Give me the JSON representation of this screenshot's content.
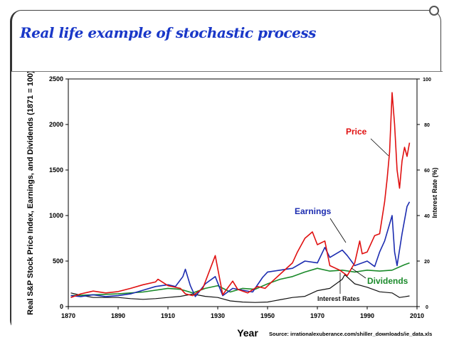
{
  "slide": {
    "title": "Real life example of stochastic process"
  },
  "chart_data": {
    "type": "line",
    "title": "",
    "xlabel": "Year",
    "ylabel_left": "Real S&P Stock Price Index, Earnings, and Dividends (1871 = 100)",
    "ylabel_right": "Interest Rate (%)",
    "xlim": [
      1870,
      2010
    ],
    "ylim_left": [
      0,
      2500
    ],
    "ylim_right": [
      0,
      100
    ],
    "x_ticks": [
      1870,
      1890,
      1910,
      1930,
      1950,
      1970,
      1990,
      2010
    ],
    "y_ticks_left": [
      0,
      500,
      1000,
      1500,
      2000,
      2500
    ],
    "y_ticks_right": [
      0,
      20,
      40,
      60,
      80,
      100
    ],
    "source": "Source: irrationalexuberance.com/shiller_downloads/ie_data.xls",
    "grid": false,
    "series": [
      {
        "name": "Price",
        "color": "#e01010",
        "axis": "left",
        "x": [
          1871,
          1875,
          1880,
          1885,
          1890,
          1895,
          1900,
          1905,
          1906,
          1910,
          1915,
          1917,
          1920,
          1924,
          1929,
          1932,
          1936,
          1938,
          1942,
          1946,
          1949,
          1952,
          1956,
          1960,
          1962,
          1965,
          1968,
          1970,
          1973,
          1975,
          1979,
          1982,
          1985,
          1987,
          1988,
          1990,
          1993,
          1995,
          1997,
          1998,
          1999,
          2000,
          2001,
          2002,
          2003,
          2004,
          2005,
          2006,
          2007
        ],
        "values": [
          100,
          140,
          170,
          150,
          165,
          200,
          240,
          270,
          300,
          230,
          200,
          140,
          120,
          200,
          560,
          130,
          280,
          190,
          150,
          220,
          200,
          280,
          380,
          480,
          600,
          750,
          820,
          680,
          720,
          450,
          400,
          340,
          480,
          720,
          580,
          600,
          780,
          800,
          1150,
          1400,
          1700,
          2350,
          2000,
          1500,
          1300,
          1600,
          1750,
          1650,
          1800
        ]
      },
      {
        "name": "Earnings",
        "color": "#1c2cb0",
        "axis": "left",
        "x": [
          1871,
          1875,
          1880,
          1885,
          1890,
          1895,
          1900,
          1905,
          1910,
          1913,
          1916,
          1917,
          1919,
          1921,
          1925,
          1929,
          1932,
          1936,
          1940,
          1944,
          1948,
          1950,
          1955,
          1960,
          1965,
          1970,
          1973,
          1975,
          1980,
          1982,
          1985,
          1990,
          1993,
          1995,
          1997,
          2000,
          2001,
          2002,
          2004,
          2006,
          2007
        ],
        "values": [
          120,
          110,
          130,
          110,
          120,
          140,
          180,
          220,
          240,
          220,
          330,
          410,
          230,
          110,
          250,
          330,
          120,
          200,
          180,
          160,
          320,
          380,
          400,
          420,
          500,
          480,
          650,
          540,
          620,
          560,
          450,
          500,
          440,
          600,
          720,
          1000,
          600,
          450,
          800,
          1100,
          1150
        ]
      },
      {
        "name": "Dividends",
        "color": "#1a8a2a",
        "axis": "left",
        "x": [
          1871,
          1880,
          1890,
          1900,
          1910,
          1915,
          1920,
          1925,
          1930,
          1935,
          1940,
          1945,
          1950,
          1955,
          1960,
          1965,
          1970,
          1975,
          1980,
          1985,
          1990,
          1995,
          2000,
          2005,
          2007
        ],
        "values": [
          120,
          130,
          140,
          160,
          200,
          190,
          150,
          200,
          230,
          160,
          200,
          190,
          250,
          300,
          330,
          380,
          420,
          390,
          400,
          380,
          400,
          390,
          400,
          460,
          480
        ]
      },
      {
        "name": "Interest Rates",
        "color": "#111111",
        "axis": "right",
        "x": [
          1871,
          1875,
          1880,
          1885,
          1890,
          1895,
          1900,
          1905,
          1910,
          1915,
          1920,
          1925,
          1930,
          1935,
          1940,
          1945,
          1950,
          1955,
          1960,
          1965,
          1970,
          1975,
          1980,
          1981,
          1985,
          1990,
          1995,
          2000,
          2003,
          2005,
          2007
        ],
        "values": [
          6,
          5,
          4,
          4,
          4,
          3.5,
          3.2,
          3.5,
          4,
          4.5,
          5.5,
          4.5,
          4,
          2.5,
          2,
          1.8,
          2,
          3,
          4,
          4.5,
          7,
          8,
          12,
          14,
          10,
          8.5,
          6.5,
          6,
          4,
          4.3,
          4.7
        ]
      }
    ],
    "annotations": [
      {
        "text": "Price",
        "color": "#e01010"
      },
      {
        "text": "Earnings",
        "color": "#1c2cb0"
      },
      {
        "text": "Dividends",
        "color": "#1a8a2a"
      },
      {
        "text": "Interest Rates",
        "color": "#111111"
      }
    ]
  }
}
